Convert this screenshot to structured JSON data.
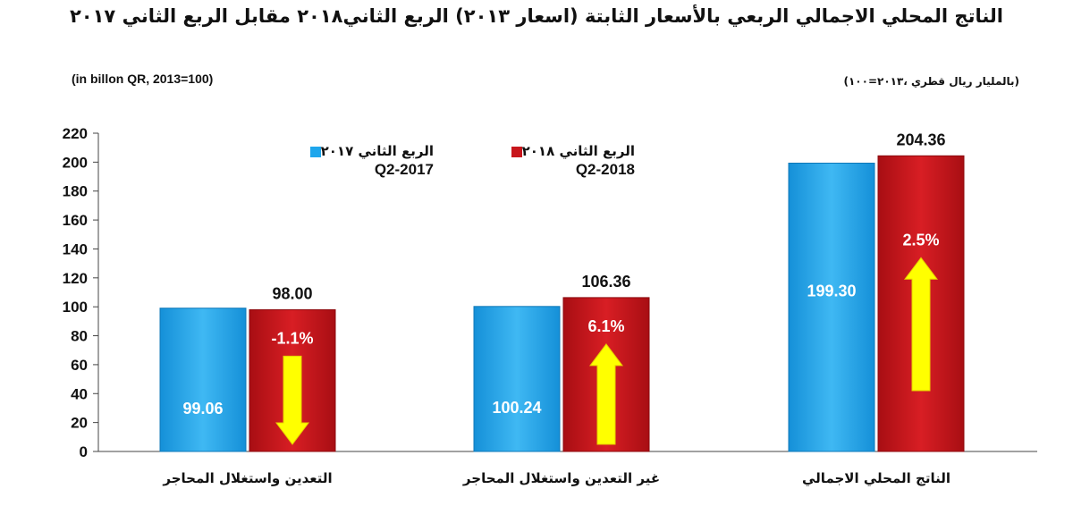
{
  "title": "الناتج المحلي الاجمالي الربعي بالأسعار الثابتة (اسعار ٢٠١٣) الربع الثاني٢٠١٨ مقابل الربع الثاني ٢٠١٧",
  "unit_en": "(in billon QR, 2013=100)",
  "unit_ar": "(بالمليار ريال قطري ،٢٠١٣=١٠٠)",
  "colors": {
    "q2_2017": "#1ea6ec",
    "q2_2018": "#c8161c",
    "arrow": "#ffff00"
  },
  "legend": [
    {
      "ar": "الربع الثاني ٢٠١٧",
      "en": "Q2-2017"
    },
    {
      "ar": "الربع الثاني ٢٠١٨",
      "en": "Q2-2018"
    }
  ],
  "chart_data": {
    "type": "bar",
    "ylim": [
      0,
      220
    ],
    "yticks": [
      0,
      20,
      40,
      60,
      80,
      100,
      120,
      140,
      160,
      180,
      200,
      220
    ],
    "categories": [
      "التعدين واستغلال المحاجر",
      "غير التعدين واستغلال المحاجر",
      "الناتج المحلي الاجمالي"
    ],
    "series": [
      {
        "name": "Q2-2017",
        "values": [
          99.06,
          100.24,
          199.3
        ],
        "labels": [
          "99.06",
          "100.24",
          "199.30"
        ]
      },
      {
        "name": "Q2-2018",
        "values": [
          98.0,
          106.36,
          204.36
        ],
        "labels": [
          "98.00",
          "106.36",
          "204.36"
        ]
      }
    ],
    "changes": [
      "-1.1%",
      "6.1%",
      "2.5%"
    ],
    "change_direction": [
      "down",
      "up",
      "up"
    ]
  }
}
